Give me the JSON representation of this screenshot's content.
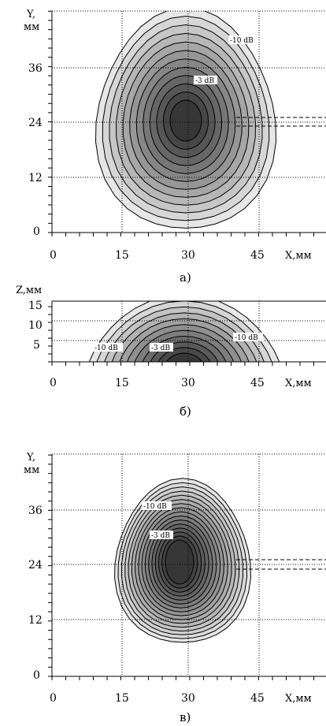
{
  "plots": [
    {
      "id": "a",
      "y_axis_label": [
        "Y,",
        "мм"
      ],
      "x_axis_label": "X,мм",
      "x_ticks": [
        "0",
        "15",
        "30",
        "45"
      ],
      "y_ticks": [
        "36",
        "24",
        "12",
        "0"
      ],
      "contour_labels": [
        "-10 dB",
        "-3 dB"
      ],
      "caption": "а)"
    },
    {
      "id": "b",
      "y_axis_label": [
        "Z,мм"
      ],
      "x_axis_label": "X,мм",
      "x_ticks": [
        "0",
        "15",
        "30",
        "45"
      ],
      "y_ticks": [
        "15",
        "10",
        "5"
      ],
      "contour_labels": [
        "-10 dB",
        "-3 dB",
        "-10 dB"
      ],
      "caption": "б)"
    },
    {
      "id": "c",
      "y_axis_label": [
        "Y,",
        "мм"
      ],
      "x_axis_label": "X,мм",
      "x_ticks": [
        "0",
        "15",
        "30",
        "45"
      ],
      "y_ticks": [
        "36",
        "24",
        "12",
        "0"
      ],
      "contour_labels": [
        "-10 dB",
        "-3 dB"
      ],
      "caption": "в)"
    }
  ]
}
